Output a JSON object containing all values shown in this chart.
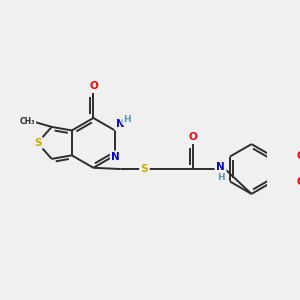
{
  "background_color": "#f0f0f0",
  "bond_color": "#2d2d2d",
  "atom_colors": {
    "O": "#ff0000",
    "N": "#0000cc",
    "S": "#ccaa00",
    "H": "#5a9aaa",
    "C": "#2d2d2d"
  },
  "figsize": [
    3.0,
    3.0
  ],
  "dpi": 100,
  "lw": 1.4,
  "fontsize": 7.5
}
